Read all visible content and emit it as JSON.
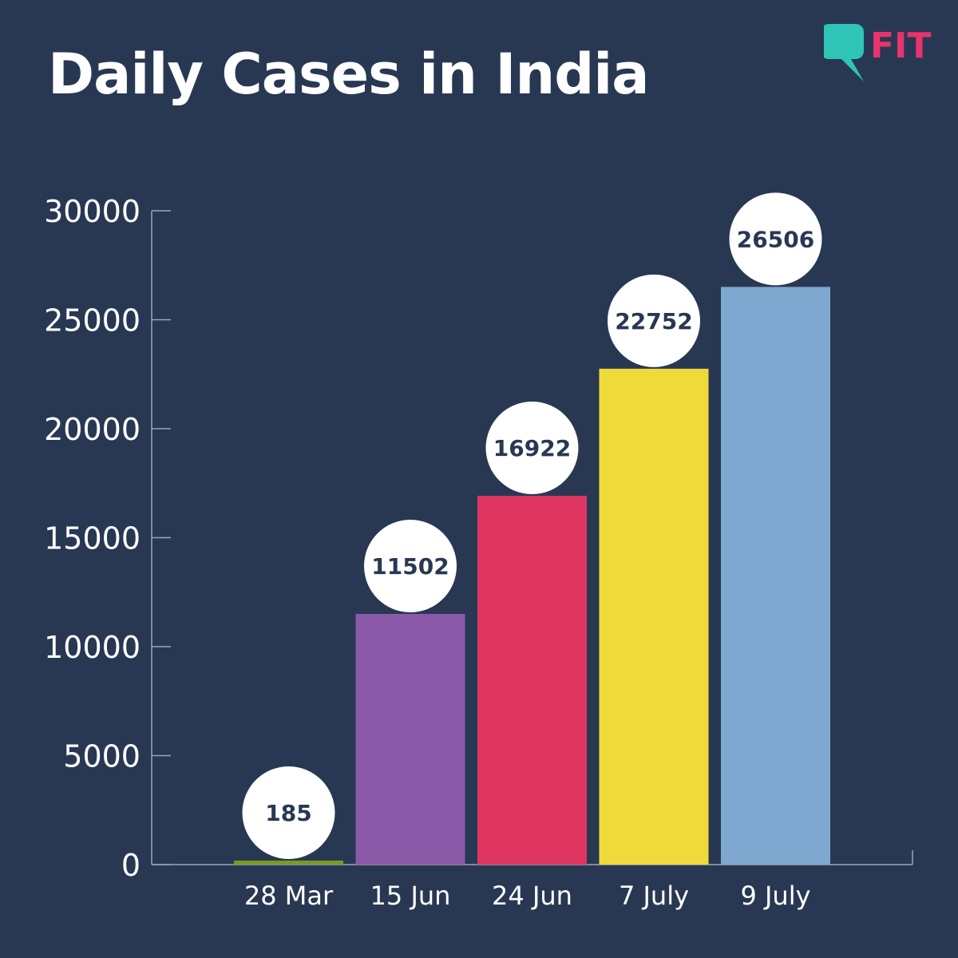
{
  "brand": {
    "logo_text": "FIT",
    "bubble_color": "#2ec4b6",
    "text_color": "#e8336d"
  },
  "chart_data": {
    "type": "bar",
    "title": "Daily Cases in India",
    "xlabel": "",
    "ylabel": "",
    "categories": [
      "28 Mar",
      "15 Jun",
      "24 Jun",
      "7 July",
      "9 July"
    ],
    "values": [
      185,
      11502,
      16922,
      22752,
      26506
    ],
    "data_labels": [
      "185",
      "11502",
      "16922",
      "22752",
      "26506"
    ],
    "bar_colors": [
      "#7a9a23",
      "#8a5aa9",
      "#de3561",
      "#f0da3a",
      "#7ea8cf"
    ],
    "ylim": [
      0,
      30000
    ],
    "yticks": [
      0,
      5000,
      10000,
      15000,
      20000,
      25000,
      30000
    ],
    "ytick_labels": [
      "0",
      "5000",
      "10000",
      "15000",
      "20000",
      "25000",
      "30000"
    ],
    "grid": false,
    "legend": "none"
  }
}
